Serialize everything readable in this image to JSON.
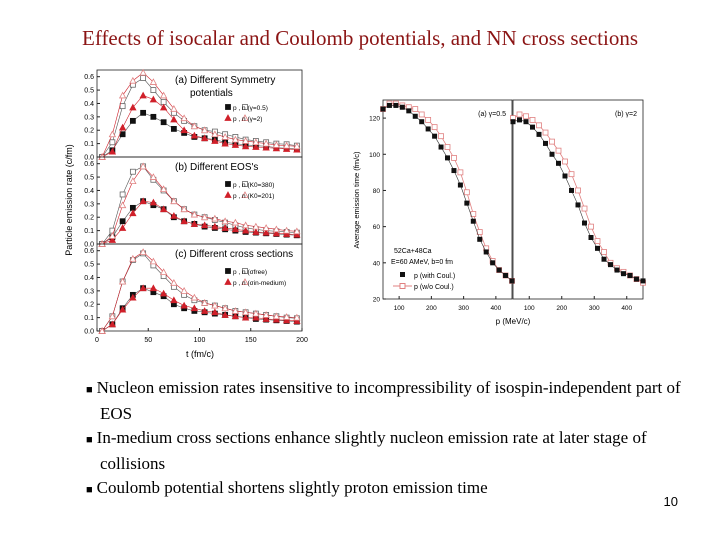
{
  "title": "Effects of isocalar and Coulomb potentials, and NN cross sections",
  "bullets": [
    "Nucleon emission rates insensitive to incompressibility of isospin-independent part of EOS",
    "In-medium cross sections enhance slightly nucleon emission rate at later stage of collisions",
    "Coulomb potential shortens slightly proton emission time"
  ],
  "page_number": "10",
  "colors": {
    "title": "#8b1414",
    "black": "#111111",
    "red": "#d0202a",
    "open": "#e08080"
  },
  "chart_data": [
    {
      "type": "line",
      "ylabel": "Particle emission rate (c/fm)",
      "xlabel": "t (fm/c)",
      "xlim": [
        0,
        200
      ],
      "ylim": [
        0,
        0.65
      ],
      "x_ticks": [
        "0",
        "50",
        "100",
        "150",
        "200"
      ],
      "y_ticks": [
        "0.0",
        "0.1",
        "0.2",
        "0.3",
        "0.4",
        "0.5",
        "0.6"
      ],
      "x": [
        5,
        15,
        25,
        35,
        45,
        55,
        65,
        75,
        85,
        95,
        105,
        115,
        125,
        135,
        145,
        155,
        165,
        175,
        185,
        195
      ],
      "panels": [
        {
          "title": "(a) Different Symmetry potentials",
          "series": [
            {
              "name": "p (γ=0.5)",
              "values": [
                0,
                0.05,
                0.17,
                0.27,
                0.33,
                0.3,
                0.26,
                0.21,
                0.18,
                0.15,
                0.14,
                0.13,
                0.11,
                0.1,
                0.09,
                0.085,
                0.08,
                0.07,
                0.065,
                0.06
              ]
            },
            {
              "name": "n (γ=0.5)",
              "values": [
                0,
                0.11,
                0.38,
                0.54,
                0.59,
                0.5,
                0.41,
                0.33,
                0.27,
                0.23,
                0.2,
                0.19,
                0.17,
                0.15,
                0.13,
                0.12,
                0.11,
                0.1,
                0.095,
                0.085
              ]
            },
            {
              "name": "p (γ=2)",
              "values": [
                0,
                0.04,
                0.22,
                0.37,
                0.46,
                0.43,
                0.37,
                0.28,
                0.2,
                0.16,
                0.14,
                0.12,
                0.1,
                0.09,
                0.08,
                0.075,
                0.07,
                0.065,
                0.06,
                0.055
              ]
            },
            {
              "name": "n (γ=2)",
              "values": [
                0,
                0.17,
                0.46,
                0.57,
                0.63,
                0.56,
                0.46,
                0.36,
                0.29,
                0.23,
                0.2,
                0.17,
                0.15,
                0.13,
                0.12,
                0.11,
                0.1,
                0.09,
                0.085,
                0.08
              ]
            }
          ],
          "legend": [
            "p , n (γ=0.5)",
            "p , n (γ=2)"
          ]
        },
        {
          "title": "(b) Different EOS's",
          "series": [
            {
              "name": "p (K0=380)",
              "values": [
                0,
                0.05,
                0.17,
                0.27,
                0.32,
                0.29,
                0.26,
                0.2,
                0.17,
                0.15,
                0.13,
                0.12,
                0.11,
                0.1,
                0.09,
                0.085,
                0.08,
                0.075,
                0.07,
                0.065
              ]
            },
            {
              "name": "n (K0=380)",
              "values": [
                0,
                0.1,
                0.37,
                0.54,
                0.58,
                0.48,
                0.4,
                0.32,
                0.26,
                0.22,
                0.2,
                0.18,
                0.16,
                0.14,
                0.12,
                0.11,
                0.1,
                0.095,
                0.09,
                0.085
              ]
            },
            {
              "name": "p (K0=201)",
              "values": [
                0,
                0.03,
                0.12,
                0.23,
                0.32,
                0.31,
                0.26,
                0.21,
                0.17,
                0.15,
                0.14,
                0.13,
                0.12,
                0.11,
                0.1,
                0.09,
                0.085,
                0.08,
                0.075,
                0.07
              ]
            },
            {
              "name": "n (K0=201)",
              "values": [
                0,
                0.06,
                0.29,
                0.47,
                0.58,
                0.5,
                0.41,
                0.32,
                0.26,
                0.22,
                0.2,
                0.19,
                0.17,
                0.16,
                0.14,
                0.13,
                0.12,
                0.11,
                0.1,
                0.095
              ]
            }
          ],
          "legend": [
            "p , n (K0=380)",
            "p , n (K0=201)"
          ]
        },
        {
          "title": "(c) Different cross sections",
          "series": [
            {
              "name": "p (σfree)",
              "values": [
                0,
                0.05,
                0.17,
                0.27,
                0.32,
                0.29,
                0.26,
                0.2,
                0.17,
                0.15,
                0.14,
                0.13,
                0.12,
                0.11,
                0.1,
                0.09,
                0.085,
                0.08,
                0.075,
                0.07
              ]
            },
            {
              "name": "n (σfree)",
              "values": [
                0,
                0.11,
                0.37,
                0.53,
                0.58,
                0.49,
                0.41,
                0.33,
                0.27,
                0.23,
                0.21,
                0.19,
                0.17,
                0.15,
                0.14,
                0.13,
                0.12,
                0.11,
                0.1,
                0.095
              ]
            },
            {
              "name": "p (σin-medium)",
              "values": [
                0,
                0.05,
                0.16,
                0.25,
                0.32,
                0.32,
                0.28,
                0.23,
                0.19,
                0.17,
                0.15,
                0.14,
                0.12,
                0.11,
                0.1,
                0.1,
                0.09,
                0.085,
                0.08,
                0.075
              ]
            },
            {
              "name": "n (σin-medium)",
              "values": [
                0,
                0.11,
                0.37,
                0.54,
                0.59,
                0.52,
                0.44,
                0.36,
                0.3,
                0.25,
                0.21,
                0.19,
                0.17,
                0.15,
                0.14,
                0.13,
                0.12,
                0.11,
                0.105,
                0.1
              ]
            }
          ],
          "legend": [
            "p , n (σfree)",
            "p , n (σin-medium)"
          ]
        }
      ]
    },
    {
      "type": "line",
      "ylabel": "Average emission time (fm/c)",
      "xlabel": "p (MeV/c)",
      "xlim": [
        50,
        450
      ],
      "ylim": [
        20,
        130
      ],
      "x_ticks": [
        "100",
        "200",
        "300",
        "400"
      ],
      "y_ticks": [
        "20",
        "40",
        "60",
        "80",
        "100",
        "120"
      ],
      "x": [
        50,
        70,
        90,
        110,
        130,
        150,
        170,
        190,
        210,
        230,
        250,
        270,
        290,
        310,
        330,
        350,
        370,
        390,
        410,
        430,
        450
      ],
      "annotation": [
        "52Ca+48Ca",
        "E=60 AMeV, b=0 fm"
      ],
      "legend": [
        "p (with Coul.)",
        "p (w/o Coul.)"
      ],
      "panels": [
        {
          "title": "(a) γ=0.5",
          "series": [
            {
              "name": "p (with Coul.)",
              "values": [
                125,
                127,
                127,
                126,
                124,
                121,
                118,
                114,
                110,
                104,
                98,
                91,
                83,
                73,
                63,
                53,
                46,
                40,
                36,
                33,
                30
              ]
            },
            {
              "name": "p (w/o Coul.)",
              "values": [
                125,
                128,
                128,
                127,
                126,
                125,
                122,
                119,
                115,
                110,
                104,
                98,
                90,
                79,
                67,
                57,
                48,
                41,
                36,
                33,
                30
              ]
            }
          ]
        },
        {
          "title": "(b) γ=2",
          "series": [
            {
              "name": "p (with Coul.)",
              "values": [
                118,
                119,
                118,
                115,
                111,
                106,
                100,
                95,
                88,
                80,
                72,
                62,
                54,
                48,
                42,
                39,
                36,
                34,
                33,
                31,
                30
              ]
            },
            {
              "name": "p (w/o Coul.)",
              "values": [
                120,
                122,
                121,
                119,
                116,
                112,
                107,
                102,
                96,
                89,
                80,
                70,
                60,
                52,
                46,
                40,
                37,
                35,
                33,
                31,
                29
              ]
            }
          ]
        }
      ]
    }
  ]
}
